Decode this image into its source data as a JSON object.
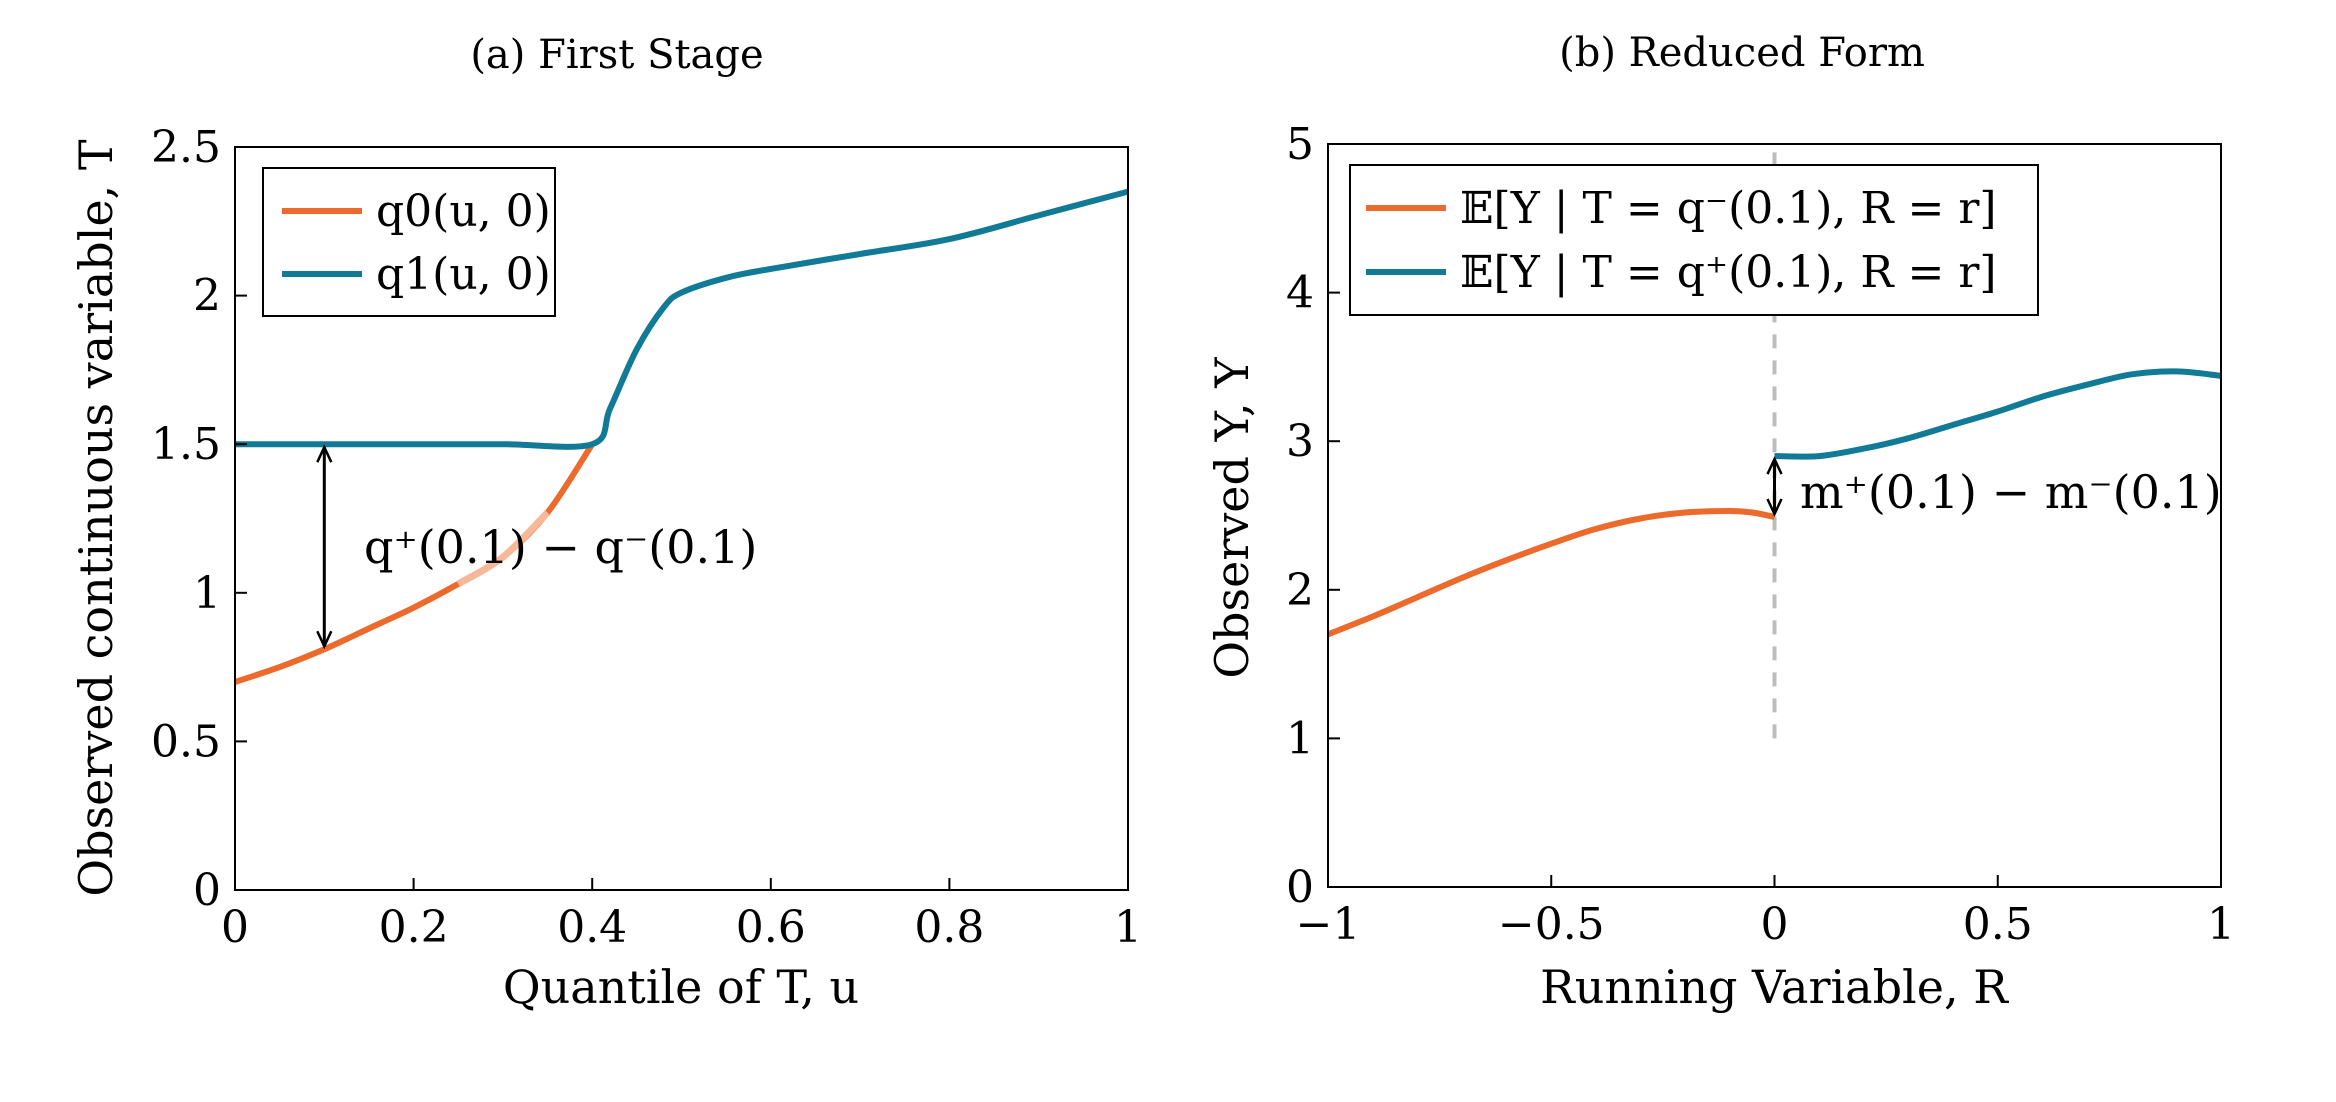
{
  "colors": {
    "orange": "#ec6a2b",
    "orange_light": "#f6b897",
    "teal": "#117a96",
    "gray": "#bdbdbd",
    "black": "#000000"
  },
  "chart_data": [
    {
      "type": "line",
      "title": "(a) First Stage",
      "xlabel": "Quantile of T, u",
      "ylabel": "Observed continuous variable, T",
      "xlim": [
        0,
        1
      ],
      "ylim": [
        0,
        2.5
      ],
      "xticks": [
        "0",
        "0.2",
        "0.4",
        "0.6",
        "0.8",
        "1"
      ],
      "yticks": [
        "0",
        "0.5",
        "1",
        "1.5",
        "2",
        "2.5"
      ],
      "grid": false,
      "legend_position": "top-left",
      "series": [
        {
          "name": "q0(u, 0)",
          "color": "#ec6a2b",
          "x": [
            0,
            0.05,
            0.1,
            0.15,
            0.2,
            0.25,
            0.3,
            0.35,
            0.4
          ],
          "y": [
            0.7,
            0.75,
            0.81,
            0.88,
            0.95,
            1.03,
            1.12,
            1.27,
            1.5
          ],
          "faded_range": [
            0.25,
            0.35
          ]
        },
        {
          "name": "q1(u, 0)",
          "color": "#117a96",
          "x": [
            0,
            0.1,
            0.2,
            0.3,
            0.4,
            0.42,
            0.45,
            0.48,
            0.5,
            0.55,
            0.6,
            0.7,
            0.8,
            0.9,
            1
          ],
          "y": [
            1.5,
            1.5,
            1.5,
            1.5,
            1.5,
            1.62,
            1.82,
            1.96,
            2.01,
            2.06,
            2.09,
            2.14,
            2.19,
            2.27,
            2.35
          ]
        }
      ],
      "annotation": {
        "text": "q⁺(0.1) − q⁻(0.1)",
        "x": 0.1,
        "y_from": 0.81,
        "y_to": 1.5
      }
    },
    {
      "type": "line",
      "title": "(b) Reduced Form",
      "xlabel": "Running Variable, R",
      "ylabel": "Observed Y, Y",
      "xlim": [
        -1,
        1
      ],
      "ylim": [
        0,
        5
      ],
      "xticks": [
        "−1",
        "−0.5",
        "0",
        "0.5",
        "1"
      ],
      "yticks": [
        "0",
        "1",
        "2",
        "3",
        "4",
        "5"
      ],
      "grid": false,
      "legend_position": "top-left",
      "series": [
        {
          "name": "𝔼[Y | T = q⁻(0.1), R = r]",
          "color": "#ec6a2b",
          "x": [
            -1,
            -0.9,
            -0.8,
            -0.7,
            -0.6,
            -0.5,
            -0.4,
            -0.3,
            -0.2,
            -0.1,
            -0.05,
            0
          ],
          "y": [
            1.7,
            1.82,
            1.95,
            2.08,
            2.2,
            2.31,
            2.41,
            2.48,
            2.52,
            2.53,
            2.52,
            2.49
          ]
        },
        {
          "name": "𝔼[Y | T = q⁺(0.1), R = r]",
          "color": "#117a96",
          "x": [
            0,
            0.1,
            0.2,
            0.3,
            0.4,
            0.5,
            0.6,
            0.7,
            0.8,
            0.9,
            1
          ],
          "y": [
            2.9,
            2.9,
            2.95,
            3.02,
            3.11,
            3.2,
            3.3,
            3.38,
            3.45,
            3.47,
            3.44
          ]
        }
      ],
      "cutoff_line": {
        "x": 0,
        "y_from": 1,
        "y_to": 5
      },
      "annotation": {
        "text": "m⁺(0.1) − m⁻(0.1)",
        "x": 0,
        "y_from": 2.49,
        "y_to": 2.9
      }
    }
  ]
}
